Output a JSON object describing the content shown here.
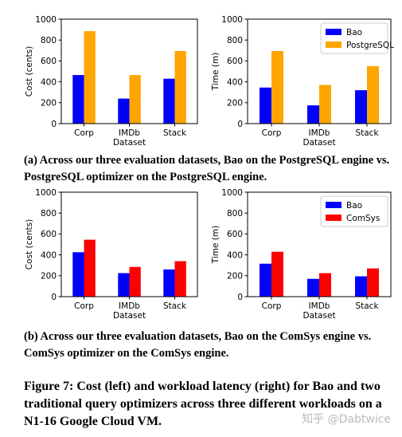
{
  "chart_data": [
    {
      "type": "bar",
      "categories": [
        "Corp",
        "IMDb",
        "Stack"
      ],
      "xlabel": "Dataset",
      "ylabel": "Cost (cents)",
      "ylim": [
        0,
        1000
      ],
      "yticks": [
        0,
        200,
        400,
        600,
        800,
        1000
      ],
      "legend": "none",
      "series": [
        {
          "name": "Bao",
          "color": "#0000ff",
          "values": [
            465,
            240,
            430
          ]
        },
        {
          "name": "PostgreSQL",
          "color": "#ffa500",
          "values": [
            885,
            465,
            695
          ]
        }
      ]
    },
    {
      "type": "bar",
      "categories": [
        "Corp",
        "IMDb",
        "Stack"
      ],
      "xlabel": "Dataset",
      "ylabel": "Time (m)",
      "ylim": [
        0,
        1000
      ],
      "yticks": [
        0,
        200,
        400,
        600,
        800,
        1000
      ],
      "legend": "top-right",
      "series": [
        {
          "name": "Bao",
          "color": "#0000ff",
          "values": [
            345,
            175,
            320
          ]
        },
        {
          "name": "PostgreSQL",
          "color": "#ffa500",
          "values": [
            695,
            370,
            550
          ]
        }
      ]
    },
    {
      "type": "bar",
      "categories": [
        "Corp",
        "IMDb",
        "Stack"
      ],
      "xlabel": "Dataset",
      "ylabel": "Cost (cents)",
      "ylim": [
        0,
        1000
      ],
      "yticks": [
        0,
        200,
        400,
        600,
        800,
        1000
      ],
      "legend": "none",
      "series": [
        {
          "name": "Bao",
          "color": "#0000ff",
          "values": [
            425,
            225,
            260
          ]
        },
        {
          "name": "ComSys",
          "color": "#ff0000",
          "values": [
            545,
            285,
            340
          ]
        }
      ]
    },
    {
      "type": "bar",
      "categories": [
        "Corp",
        "IMDb",
        "Stack"
      ],
      "xlabel": "Dataset",
      "ylabel": "Time (m)",
      "ylim": [
        0,
        1000
      ],
      "yticks": [
        0,
        200,
        400,
        600,
        800,
        1000
      ],
      "legend": "top-right",
      "series": [
        {
          "name": "Bao",
          "color": "#0000ff",
          "values": [
            315,
            170,
            195
          ]
        },
        {
          "name": "ComSys",
          "color": "#ff0000",
          "values": [
            430,
            225,
            270
          ]
        }
      ]
    }
  ],
  "captions": {
    "a": "(a) Across our three evaluation datasets, Bao on the PostgreSQL engine vs. PostgreSQL optimizer on the PostgreSQL engine.",
    "b": "(b) Across our three evaluation datasets, Bao on the ComSys engine vs. ComSys optimizer on the ComSys engine.",
    "figure": "Figure 7: Cost (left) and workload latency (right) for Bao and two traditional query optimizers across three different workloads on a N1-16 Google Cloud VM."
  },
  "watermark": "知乎 @Dabtwice"
}
